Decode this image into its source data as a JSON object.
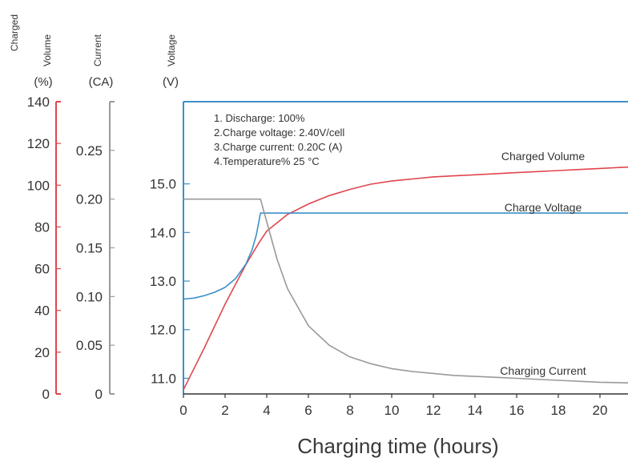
{
  "chart_data": {
    "type": "line",
    "xlabel": "Charging time (hours)",
    "x_ticks": [
      "0",
      "2",
      "4",
      "6",
      "8",
      "10",
      "12",
      "14",
      "16",
      "18",
      "20"
    ],
    "xlim": [
      0,
      22
    ],
    "axes": [
      {
        "id": "charged_volume",
        "name_lines": [
          "Charged",
          "Volume"
        ],
        "unit": "(%)",
        "range": [
          0,
          140
        ],
        "ticks": [
          {
            "v": 0,
            "t": "0"
          },
          {
            "v": 20,
            "t": "20"
          },
          {
            "v": 40,
            "t": "40"
          },
          {
            "v": 60,
            "t": "60"
          },
          {
            "v": 80,
            "t": "80"
          },
          {
            "v": 100,
            "t": "100"
          },
          {
            "v": 120,
            "t": "120"
          },
          {
            "v": 140,
            "t": "140"
          }
        ],
        "color": "#e0464c"
      },
      {
        "id": "current",
        "name_lines": [
          "Current"
        ],
        "unit": "(CA)",
        "range": [
          0,
          0.3
        ],
        "ticks": [
          {
            "v": 0,
            "t": "0"
          },
          {
            "v": 0.05,
            "t": "0.05"
          },
          {
            "v": 0.1,
            "t": "0.10"
          },
          {
            "v": 0.15,
            "t": "0.15"
          },
          {
            "v": 0.2,
            "t": "0.20"
          },
          {
            "v": 0.25,
            "t": "0.25"
          }
        ],
        "color": "#999999"
      },
      {
        "id": "voltage",
        "name_lines": [
          "Voltage"
        ],
        "unit": "(V)",
        "range": [
          10.2,
          16.2
        ],
        "ticks": [
          {
            "v": 11.0,
            "t": "11.0"
          },
          {
            "v": 12.0,
            "t": "12.0"
          },
          {
            "v": 13.0,
            "t": "13.0"
          },
          {
            "v": 14.0,
            "t": "14.0"
          },
          {
            "v": 15.0,
            "t": "15.0"
          }
        ],
        "color": "#3d8fc8"
      }
    ],
    "series": [
      {
        "name": "Charged Volume",
        "axis": "charged_volume",
        "color": "#e0464c",
        "x": [
          0,
          1,
          2,
          3,
          3.6,
          4,
          5,
          6,
          7,
          8,
          9,
          10,
          11,
          12,
          13,
          14,
          15,
          16,
          17,
          18,
          19,
          20,
          21,
          22
        ],
        "y": [
          2,
          22,
          43,
          62,
          72,
          78,
          86,
          91,
          95,
          98,
          100.5,
          102,
          103,
          104,
          104.5,
          105,
          105.5,
          106,
          106.5,
          107,
          107.5,
          108,
          108.5,
          109
        ]
      },
      {
        "name": "Charge Voltage",
        "axis": "voltage",
        "color": "#3d8fc8",
        "x": [
          0,
          0.5,
          1,
          1.5,
          2,
          2.5,
          3,
          3.3,
          3.5,
          3.7,
          22
        ],
        "y": [
          12.63,
          12.65,
          12.7,
          12.77,
          12.87,
          13.05,
          13.35,
          13.65,
          13.95,
          14.4,
          14.4
        ]
      },
      {
        "name": "Charging Current",
        "axis": "current",
        "color": "#999999",
        "x": [
          0,
          3.6,
          3.7,
          4.5,
          5,
          6,
          7,
          8,
          9,
          10,
          11,
          12,
          13,
          14,
          16,
          18,
          20,
          22
        ],
        "y": [
          0.2,
          0.2,
          0.2,
          0.138,
          0.108,
          0.07,
          0.05,
          0.038,
          0.031,
          0.026,
          0.023,
          0.021,
          0.019,
          0.018,
          0.016,
          0.014,
          0.012,
          0.011
        ]
      }
    ],
    "conditions": [
      "1. Discharge: 100%",
      "2.Charge voltage: 2.40V/cell",
      "3.Charge current: 0.20C (A)",
      "4.Temperature% 25 °C"
    ],
    "grid": false
  }
}
